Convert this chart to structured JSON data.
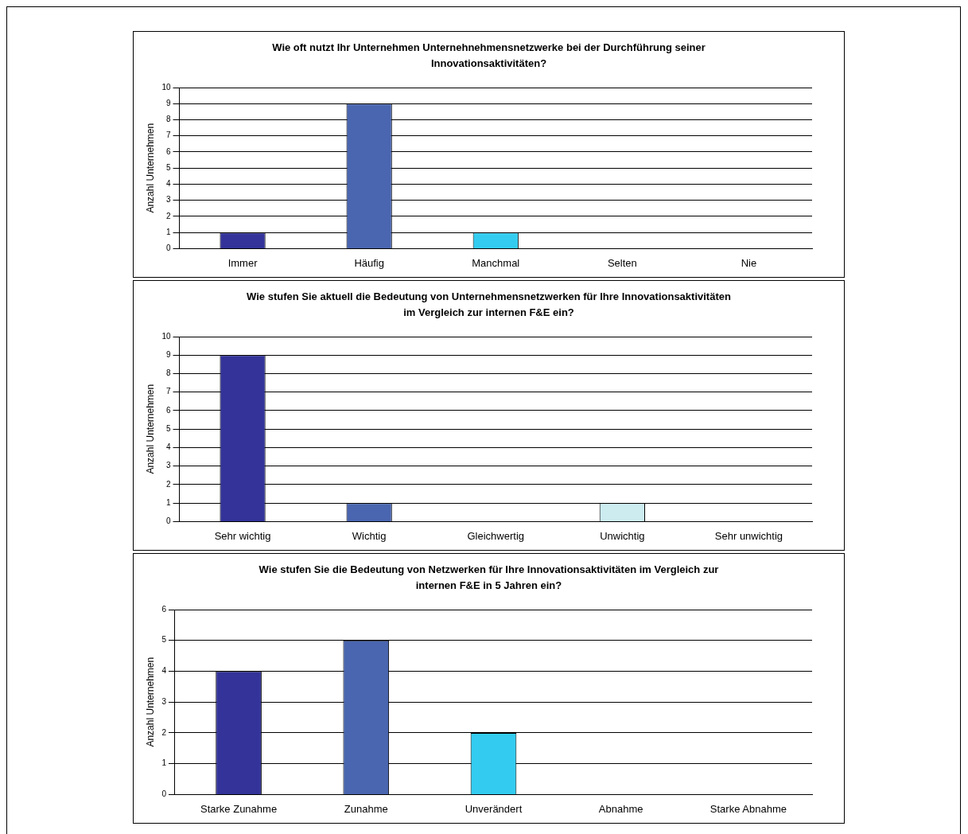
{
  "chart_data": [
    {
      "type": "bar",
      "title": "Wie oft nutzt Ihr Unternehmen Unternehnehmensnetzwerke bei der Durchführung seiner Innovationsaktivitäten?",
      "ylabel": "Anzahl Unternehmen",
      "categories": [
        "Immer",
        "Häufig",
        "Manchmal",
        "Selten",
        "Nie"
      ],
      "values": [
        1,
        9,
        1,
        0,
        0
      ],
      "colors": [
        "#333399",
        "#4a66b0",
        "#33ccf0",
        "#ccecf0",
        "#660066"
      ],
      "ylim": [
        0,
        10
      ],
      "yticks": [
        0,
        1,
        2,
        3,
        4,
        5,
        6,
        7,
        8,
        9,
        10
      ],
      "grid": "y",
      "legend": false
    },
    {
      "type": "bar",
      "title": "Wie stufen Sie aktuell die Bedeutung von Unternehmensnetzwerken für Ihre Innovationsaktivitäten im Vergleich zur internen F&E ein?",
      "ylabel": "Anzahl Unternehmen",
      "categories": [
        "Sehr wichtig",
        "Wichtig",
        "Gleichwertig",
        "Unwichtig",
        "Sehr unwichtig"
      ],
      "values": [
        9,
        1,
        0,
        1,
        0
      ],
      "colors": [
        "#333399",
        "#4a66b0",
        "#33ccf0",
        "#ccecf0",
        "#660066"
      ],
      "ylim": [
        0,
        10
      ],
      "yticks": [
        0,
        1,
        2,
        3,
        4,
        5,
        6,
        7,
        8,
        9,
        10
      ],
      "grid": "y",
      "legend": false
    },
    {
      "type": "bar",
      "title": "Wie stufen Sie die Bedeutung von Netzwerken für Ihre Innovationsaktivitäten im Vergleich zur internen F&E in 5 Jahren ein?",
      "ylabel": "Anzahl Unternehmen",
      "categories": [
        "Starke Zunahme",
        "Zunahme",
        "Unverändert",
        "Abnahme",
        "Starke Abnahme"
      ],
      "values": [
        4,
        5,
        2,
        0,
        0
      ],
      "colors": [
        "#333399",
        "#4a66b0",
        "#33ccf0",
        "#ccecf0",
        "#660066"
      ],
      "ylim": [
        0,
        6
      ],
      "yticks": [
        0,
        1,
        2,
        3,
        4,
        5,
        6
      ],
      "grid": "y",
      "legend": false
    }
  ]
}
